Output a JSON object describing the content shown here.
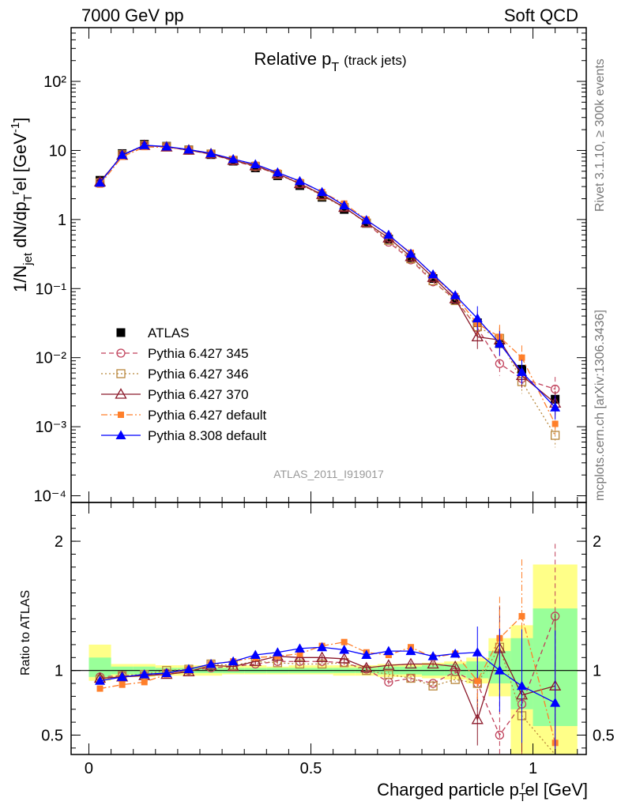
{
  "header": {
    "left": "7000 GeV pp",
    "right": "Soft QCD"
  },
  "side_labels": {
    "top": "Rivet 3.1.10, ≥ 300k events",
    "bottom": "mcplots.cern.ch [arXiv:1306.3436]"
  },
  "colors": {
    "ATLAS": "#000000",
    "Pythia 6.427 345": "#c0405a",
    "Pythia 6.427 346": "#b8863b",
    "Pythia 6.427 370": "#8b1a2b",
    "Pythia 6.427 default": "#ff7f2a",
    "Pythia 8.308 default": "#0000ff",
    "band_inner": "#99ff99",
    "band_outer": "#ffff88"
  },
  "chart_data": [
    {
      "type": "line",
      "title": "Relative p",
      "title_sub": "T",
      "title_extra": "(track jets)",
      "ylabel": "1/N_jet dN/dp_T^rel [GeV^-1]",
      "ylabel_parts": {
        "a": "1/N",
        "a_sub": "jet",
        "b": " dN/dp",
        "b_sub": "T",
        "b_sup": "r",
        "c": "el [GeV",
        "c_sup": "-1",
        "d": "]"
      },
      "yscale": "log",
      "ylim": [
        8e-05,
        600
      ],
      "xlim": [
        -0.04,
        1.12
      ],
      "ytick_labels": [
        "10⁻⁴",
        "10⁻³",
        "10⁻²",
        "10⁻¹",
        "1",
        "10",
        "10²"
      ],
      "ytick_values": [
        0.0001,
        0.001,
        0.01,
        0.1,
        1,
        10,
        100
      ],
      "watermark": "ATLAS_2011_I919017",
      "legend_position": "lower-left",
      "x": [
        0.025,
        0.075,
        0.125,
        0.175,
        0.225,
        0.275,
        0.325,
        0.375,
        0.425,
        0.475,
        0.525,
        0.575,
        0.625,
        0.675,
        0.725,
        0.775,
        0.825,
        0.875,
        0.925,
        0.975,
        1.05
      ],
      "series": [
        {
          "name": "ATLAS",
          "marker": "square-filled",
          "line": "none",
          "values": [
            3.7,
            9.0,
            12.3,
            11.5,
            10.2,
            8.7,
            7.0,
            5.6,
            4.3,
            3.1,
            2.1,
            1.4,
            0.88,
            0.52,
            0.28,
            0.14,
            0.069,
            0.032,
            0.016,
            0.0068,
            0.0025
          ]
        },
        {
          "name": "Pythia 6.427 345",
          "marker": "circle-open",
          "line": "dashed",
          "values": [
            3.5,
            8.6,
            11.8,
            11.3,
            10.1,
            8.8,
            7.1,
            5.8,
            4.6,
            3.3,
            2.25,
            1.5,
            0.89,
            0.47,
            0.26,
            0.125,
            0.07,
            0.027,
            0.0082,
            0.005,
            0.0035
          ]
        },
        {
          "name": "Pythia 6.427 346",
          "marker": "square-open",
          "line": "dotted",
          "values": [
            3.4,
            8.7,
            11.9,
            11.3,
            10.1,
            8.9,
            7.2,
            5.9,
            4.5,
            3.3,
            2.2,
            1.5,
            0.89,
            0.5,
            0.27,
            0.13,
            0.067,
            0.028,
            0.019,
            0.0045,
            0.00075
          ]
        },
        {
          "name": "Pythia 6.427 370",
          "marker": "triangle-open",
          "line": "solid",
          "values": [
            3.5,
            8.5,
            11.8,
            11.2,
            10.1,
            8.9,
            7.2,
            6.0,
            4.6,
            3.3,
            2.3,
            1.5,
            0.9,
            0.54,
            0.29,
            0.145,
            0.071,
            0.02,
            0.018,
            0.0055,
            0.0022
          ]
        },
        {
          "name": "Pythia 6.427 default",
          "marker": "square-filled-small",
          "line": "dashdot",
          "values": [
            3.2,
            8.1,
            11.2,
            11.1,
            10.3,
            9.1,
            7.5,
            6.2,
            4.8,
            3.5,
            2.5,
            1.7,
            1.0,
            0.58,
            0.33,
            0.155,
            0.078,
            0.031,
            0.02,
            0.01,
            0.0011
          ]
        },
        {
          "name": "Pythia 8.308 default",
          "marker": "triangle-filled",
          "line": "solid",
          "values": [
            3.4,
            8.6,
            11.9,
            11.4,
            10.3,
            9.1,
            7.5,
            6.3,
            4.8,
            3.6,
            2.5,
            1.6,
            0.98,
            0.6,
            0.32,
            0.16,
            0.08,
            0.037,
            0.016,
            0.0062,
            0.0019
          ]
        }
      ],
      "legend": [
        "ATLAS",
        "Pythia 6.427 345",
        "Pythia 6.427 346",
        "Pythia 6.427 370",
        "Pythia 6.427 default",
        "Pythia 8.308 default"
      ]
    },
    {
      "type": "line",
      "ylabel": "Ratio to ATLAS",
      "xlabel": "Charged particle p",
      "xlabel_sub": "T",
      "xlabel_sup": "r",
      "xlabel_tail": "el [GeV]",
      "ylim": [
        0.35,
        2.3
      ],
      "xlim": [
        -0.04,
        1.12
      ],
      "ytick_labels": [
        "0.5",
        "1",
        "2"
      ],
      "ytick_values": [
        0.5,
        1,
        2
      ],
      "xtick_labels": [
        "0",
        "0.5",
        "1"
      ],
      "xtick_values": [
        0,
        0.5,
        1
      ],
      "reference_line": 1,
      "bands": {
        "edges": [
          0.0,
          0.05,
          0.1,
          0.15,
          0.2,
          0.25,
          0.3,
          0.35,
          0.4,
          0.45,
          0.5,
          0.55,
          0.6,
          0.65,
          0.7,
          0.75,
          0.8,
          0.85,
          0.9,
          0.95,
          1.0,
          1.1
        ],
        "inner": [
          [
            0.95,
            1.1
          ],
          [
            0.97,
            1.03
          ],
          [
            0.97,
            1.03
          ],
          [
            0.98,
            1.02
          ],
          [
            0.98,
            1.02
          ],
          [
            0.98,
            1.02
          ],
          [
            0.98,
            1.02
          ],
          [
            0.98,
            1.02
          ],
          [
            0.98,
            1.02
          ],
          [
            0.98,
            1.02
          ],
          [
            0.98,
            1.02
          ],
          [
            0.98,
            1.02
          ],
          [
            0.98,
            1.02
          ],
          [
            0.97,
            1.03
          ],
          [
            0.97,
            1.03
          ],
          [
            0.96,
            1.04
          ],
          [
            0.96,
            1.05
          ],
          [
            0.94,
            1.07
          ],
          [
            0.9,
            1.15
          ],
          [
            0.7,
            1.25
          ],
          [
            0.57,
            1.48
          ]
        ],
        "outer": [
          [
            0.92,
            1.2
          ],
          [
            0.95,
            1.05
          ],
          [
            0.95,
            1.05
          ],
          [
            0.96,
            1.04
          ],
          [
            0.96,
            1.04
          ],
          [
            0.96,
            1.04
          ],
          [
            0.97,
            1.04
          ],
          [
            0.97,
            1.04
          ],
          [
            0.97,
            1.03
          ],
          [
            0.97,
            1.04
          ],
          [
            0.97,
            1.04
          ],
          [
            0.96,
            1.04
          ],
          [
            0.96,
            1.04
          ],
          [
            0.95,
            1.05
          ],
          [
            0.95,
            1.05
          ],
          [
            0.94,
            1.06
          ],
          [
            0.93,
            1.07
          ],
          [
            0.9,
            1.1
          ],
          [
            0.8,
            1.25
          ],
          [
            0.35,
            1.35
          ],
          [
            0.35,
            1.82
          ]
        ]
      },
      "x": [
        0.025,
        0.075,
        0.125,
        0.175,
        0.225,
        0.275,
        0.325,
        0.375,
        0.425,
        0.475,
        0.525,
        0.575,
        0.625,
        0.675,
        0.725,
        0.775,
        0.825,
        0.875,
        0.925,
        0.975,
        1.05
      ],
      "series": [
        {
          "name": "Pythia 6.427 345",
          "values": [
            0.95,
            0.96,
            0.96,
            0.98,
            1.0,
            1.02,
            1.03,
            1.05,
            1.07,
            1.07,
            1.07,
            1.06,
            1.01,
            0.91,
            0.94,
            0.9,
            0.99,
            0.9,
            0.5,
            0.74,
            1.42
          ]
        },
        {
          "name": "Pythia 6.427 346",
          "values": [
            0.93,
            0.96,
            0.97,
            1.0,
            1.01,
            1.05,
            1.04,
            1.07,
            1.06,
            1.05,
            1.05,
            1.06,
            1.0,
            0.97,
            0.94,
            0.88,
            0.93,
            0.9,
            1.18,
            0.65,
            0.32
          ]
        },
        {
          "name": "Pythia 6.427 370",
          "values": [
            0.94,
            0.95,
            0.96,
            0.97,
            0.99,
            1.04,
            1.03,
            1.07,
            1.11,
            1.1,
            1.1,
            1.09,
            1.02,
            1.04,
            1.05,
            1.05,
            1.03,
            0.62,
            1.17,
            0.81,
            0.88
          ]
        },
        {
          "name": "Pythia 6.427 default",
          "values": [
            0.86,
            0.89,
            0.91,
            0.97,
            1.01,
            1.05,
            1.07,
            1.1,
            1.11,
            1.13,
            1.19,
            1.22,
            1.14,
            1.12,
            1.18,
            1.1,
            1.13,
            0.92,
            1.25,
            1.42,
            0.44
          ]
        },
        {
          "name": "Pythia 8.308 default",
          "values": [
            0.92,
            0.95,
            0.97,
            0.98,
            1.01,
            1.05,
            1.07,
            1.12,
            1.14,
            1.17,
            1.18,
            1.16,
            1.12,
            1.15,
            1.15,
            1.11,
            1.13,
            1.14,
            1.0,
            0.88,
            0.75
          ]
        }
      ]
    }
  ]
}
